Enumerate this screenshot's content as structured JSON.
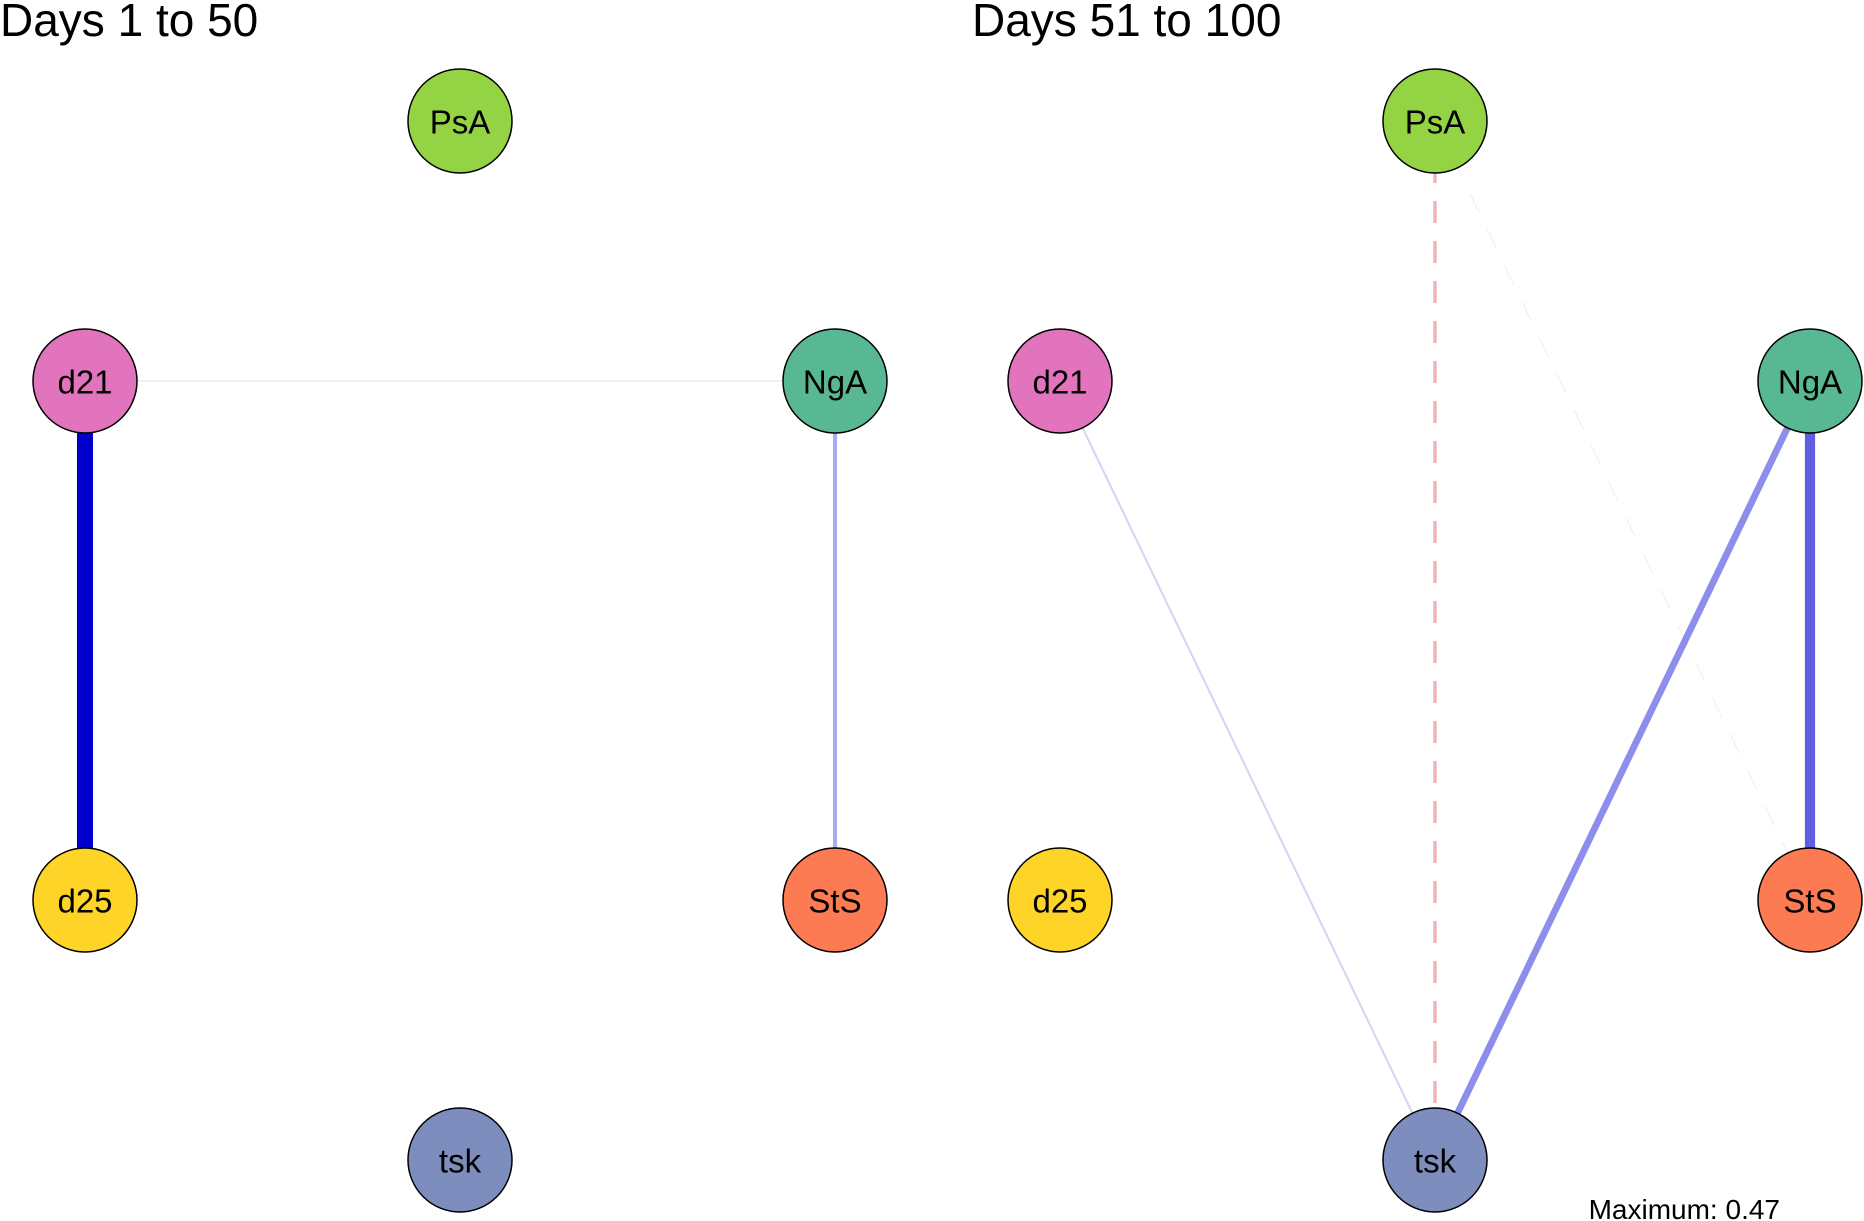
{
  "nodes": {
    "PsA": {
      "label": "PsA",
      "color": "#94d444"
    },
    "d21": {
      "label": "d21",
      "color": "#e273bd"
    },
    "NgA": {
      "label": "NgA",
      "color": "#57b893"
    },
    "d25": {
      "label": "d25",
      "color": "#fdd427"
    },
    "StS": {
      "label": "StS",
      "color": "#fc7b52"
    },
    "tsk": {
      "label": "tsk",
      "color": "#7d8dbe"
    }
  },
  "panels": [
    {
      "title": "Days 1 to 50",
      "edges": [
        {
          "from": "d21",
          "to": "d25",
          "weight": 0.47,
          "sign": "positive",
          "color": "#0000cc"
        },
        {
          "from": "d21",
          "to": "NgA",
          "weight": 0.03,
          "sign": "positive",
          "color": "#e2e2fa"
        },
        {
          "from": "NgA",
          "to": "StS",
          "weight": 0.12,
          "sign": "positive",
          "color": "#aaaaf0"
        }
      ]
    },
    {
      "title": "Days 51 to 100",
      "edges": [
        {
          "from": "d21",
          "to": "tsk",
          "weight": 0.06,
          "sign": "positive",
          "color": "#d4d4f5"
        },
        {
          "from": "PsA",
          "to": "tsk",
          "weight": 0.1,
          "sign": "negative",
          "color": "#efb5b5"
        },
        {
          "from": "PsA",
          "to": "StS",
          "weight": 0.01,
          "sign": "negative",
          "color": "#f4efef"
        },
        {
          "from": "NgA",
          "to": "tsk",
          "weight": 0.2,
          "sign": "positive",
          "color": "#8d8deb"
        },
        {
          "from": "NgA",
          "to": "StS",
          "weight": 0.3,
          "sign": "positive",
          "color": "#5e5ede"
        }
      ]
    }
  ],
  "footer": "Maximum: 0.47"
}
